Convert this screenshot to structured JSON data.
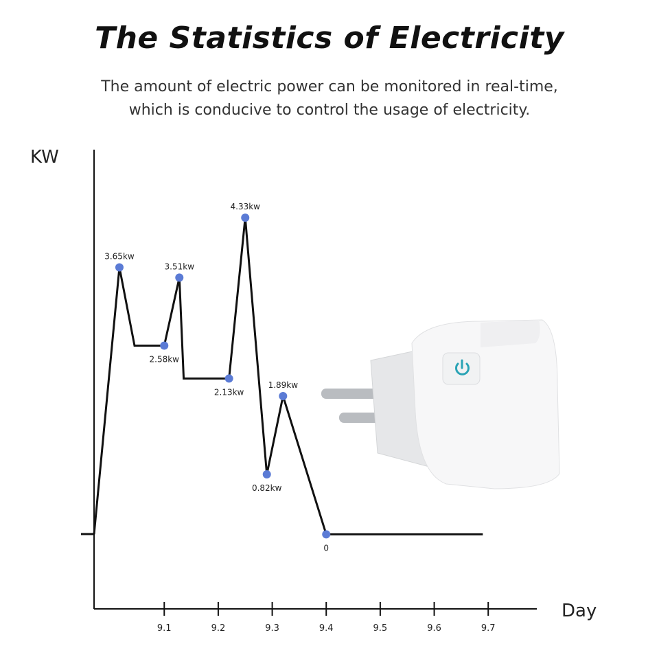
{
  "chart_data": {
    "type": "line",
    "title": "The Statistics of Electricity",
    "subtitle": [
      "The amount of electric power can be monitored in real-time,",
      "which is conducive to control the usage of electricity."
    ],
    "y_label": "KW",
    "x_label": "Day",
    "x": [
      8.97,
      9.017,
      9.045,
      9.1,
      9.128,
      9.136,
      9.22,
      9.25,
      9.29,
      9.32,
      9.4,
      9.69
    ],
    "values": [
      0,
      3.65,
      2.58,
      2.58,
      3.51,
      2.13,
      2.13,
      4.33,
      0.82,
      1.89,
      0,
      0
    ],
    "value_labels": [
      null,
      "3.65kw",
      null,
      "2.58kw",
      "3.51kw",
      null,
      "2.13kw",
      "4.33kw",
      "0.82kw",
      "1.89kw",
      "0",
      null
    ],
    "color": "#111111",
    "marker_color": "#5b7bd5",
    "xlim": [
      8.97,
      9.79
    ],
    "ylim": [
      -1.02,
      5.26
    ],
    "xticks": [
      9.1,
      9.2,
      9.3,
      9.4,
      9.5,
      9.6,
      9.7
    ]
  }
}
